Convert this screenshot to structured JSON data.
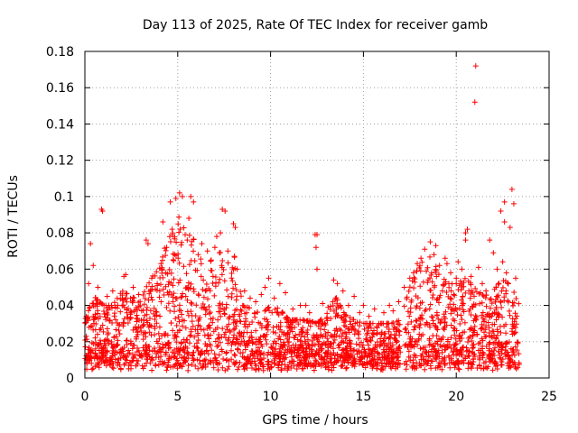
{
  "chart_data": {
    "type": "scatter",
    "title": "Day 113 of 2025, Rate Of TEC Index for receiver gamb",
    "xlabel": "GPS time / hours",
    "ylabel": "ROTI / TECUs",
    "xlim": [
      0,
      25
    ],
    "ylim": [
      0,
      0.18
    ],
    "x_ticks": [
      0,
      5,
      10,
      15,
      20,
      25
    ],
    "x_tick_labels": [
      "0",
      "5",
      "10",
      "15",
      "20",
      "25"
    ],
    "y_ticks": [
      0,
      0.02,
      0.04,
      0.06,
      0.08,
      0.1,
      0.12,
      0.14,
      0.16,
      0.18
    ],
    "y_tick_labels": [
      "0",
      "0.02",
      "0.04",
      "0.06",
      "0.08",
      "0.1",
      "0.12",
      "0.14",
      "0.16",
      "0.18"
    ],
    "grid": true,
    "marker": "+",
    "colors": {
      "series": "#ff0000",
      "grid": "#a0a0a0",
      "axis": "#000000"
    },
    "series": [
      {
        "name": "ROTI",
        "points": [
          [
            0.3,
            0.074
          ],
          [
            0.9,
            0.093
          ],
          [
            0.95,
            0.092
          ],
          [
            4.2,
            0.086
          ],
          [
            4.6,
            0.097
          ],
          [
            4.9,
            0.099
          ],
          [
            5.1,
            0.102
          ],
          [
            5.25,
            0.1
          ],
          [
            5.7,
            0.1
          ],
          [
            5.85,
            0.097
          ],
          [
            7.4,
            0.093
          ],
          [
            7.55,
            0.092
          ],
          [
            8.0,
            0.085
          ],
          [
            8.1,
            0.083
          ],
          [
            3.3,
            0.076
          ],
          [
            3.4,
            0.074
          ],
          [
            2.1,
            0.056
          ],
          [
            2.2,
            0.057
          ],
          [
            6.6,
            0.07
          ],
          [
            7.1,
            0.078
          ],
          [
            12.4,
            0.079
          ],
          [
            12.5,
            0.079
          ],
          [
            12.45,
            0.072
          ],
          [
            12.5,
            0.06
          ],
          [
            10.5,
            0.052
          ],
          [
            10.8,
            0.047
          ],
          [
            13.4,
            0.054
          ],
          [
            13.6,
            0.052
          ],
          [
            9.9,
            0.055
          ],
          [
            9.7,
            0.05
          ],
          [
            11.9,
            0.04
          ],
          [
            14.5,
            0.045
          ],
          [
            15.0,
            0.04
          ],
          [
            16.4,
            0.04
          ],
          [
            16.9,
            0.042
          ],
          [
            17.9,
            0.063
          ],
          [
            18.3,
            0.071
          ],
          [
            18.6,
            0.075
          ],
          [
            18.9,
            0.073
          ],
          [
            19.4,
            0.066
          ],
          [
            19.5,
            0.063
          ],
          [
            20.1,
            0.064
          ],
          [
            20.5,
            0.08
          ],
          [
            20.6,
            0.082
          ],
          [
            20.5,
            0.076
          ],
          [
            21.0,
            0.152
          ],
          [
            21.05,
            0.172
          ],
          [
            21.2,
            0.061
          ],
          [
            21.8,
            0.076
          ],
          [
            22.0,
            0.069
          ],
          [
            22.4,
            0.092
          ],
          [
            22.6,
            0.097
          ],
          [
            22.6,
            0.086
          ],
          [
            22.9,
            0.083
          ],
          [
            23.0,
            0.104
          ],
          [
            23.1,
            0.096
          ],
          [
            22.5,
            0.064
          ],
          [
            22.7,
            0.058
          ],
          [
            0.2,
            0.052
          ],
          [
            0.45,
            0.062
          ],
          [
            0.7,
            0.05
          ],
          [
            1.2,
            0.045
          ],
          [
            1.5,
            0.048
          ],
          [
            2.6,
            0.05
          ],
          [
            2.9,
            0.046
          ],
          [
            3.6,
            0.055
          ],
          [
            3.9,
            0.051
          ],
          [
            4.1,
            0.063
          ],
          [
            4.4,
            0.072
          ],
          [
            4.7,
            0.082
          ],
          [
            5.4,
            0.079
          ],
          [
            5.6,
            0.088
          ],
          [
            6.1,
            0.068
          ],
          [
            6.3,
            0.074
          ],
          [
            6.8,
            0.065
          ],
          [
            7.0,
            0.072
          ],
          [
            7.3,
            0.08
          ],
          [
            7.7,
            0.07
          ],
          [
            8.2,
            0.06
          ],
          [
            8.6,
            0.048
          ],
          [
            8.9,
            0.044
          ],
          [
            9.2,
            0.042
          ],
          [
            9.5,
            0.046
          ],
          [
            10.2,
            0.044
          ],
          [
            11.2,
            0.038
          ],
          [
            11.6,
            0.04
          ],
          [
            12.1,
            0.036
          ],
          [
            12.8,
            0.041
          ],
          [
            13.1,
            0.039
          ],
          [
            13.9,
            0.048
          ],
          [
            14.2,
            0.04
          ],
          [
            14.8,
            0.036
          ],
          [
            15.3,
            0.034
          ],
          [
            15.6,
            0.038
          ],
          [
            16.1,
            0.036
          ],
          [
            16.6,
            0.037
          ],
          [
            17.2,
            0.05
          ],
          [
            17.5,
            0.055
          ],
          [
            17.7,
            0.058
          ],
          [
            18.1,
            0.066
          ],
          [
            18.8,
            0.068
          ],
          [
            19.1,
            0.062
          ],
          [
            19.7,
            0.058
          ],
          [
            20.0,
            0.055
          ],
          [
            20.3,
            0.06
          ],
          [
            20.8,
            0.056
          ],
          [
            21.4,
            0.052
          ],
          [
            21.6,
            0.048
          ],
          [
            22.2,
            0.06
          ],
          [
            23.2,
            0.055
          ]
        ]
      }
    ],
    "dense_band": {
      "description": "continuous cloud of samples between the envelope values",
      "x_start": 0,
      "x_end": 23.4,
      "gap": [
        17.0,
        17.2
      ],
      "baseline_min": 0.004,
      "envelope": [
        [
          0,
          0.032
        ],
        [
          0.5,
          0.045
        ],
        [
          1,
          0.04
        ],
        [
          1.5,
          0.04
        ],
        [
          2,
          0.048
        ],
        [
          2.5,
          0.045
        ],
        [
          3,
          0.042
        ],
        [
          3.5,
          0.055
        ],
        [
          4,
          0.06
        ],
        [
          4.5,
          0.08
        ],
        [
          5,
          0.09
        ],
        [
          5.5,
          0.08
        ],
        [
          6,
          0.075
        ],
        [
          6.5,
          0.06
        ],
        [
          7,
          0.068
        ],
        [
          7.5,
          0.07
        ],
        [
          8,
          0.07
        ],
        [
          8.5,
          0.04
        ],
        [
          9,
          0.038
        ],
        [
          9.5,
          0.035
        ],
        [
          10,
          0.04
        ],
        [
          10.5,
          0.038
        ],
        [
          11,
          0.032
        ],
        [
          11.5,
          0.032
        ],
        [
          12,
          0.032
        ],
        [
          12.5,
          0.03
        ],
        [
          13,
          0.035
        ],
        [
          13.5,
          0.045
        ],
        [
          14,
          0.035
        ],
        [
          14.5,
          0.032
        ],
        [
          15,
          0.03
        ],
        [
          15.5,
          0.03
        ],
        [
          16,
          0.03
        ],
        [
          16.5,
          0.03
        ],
        [
          17,
          0.032
        ],
        [
          17.5,
          0.05
        ],
        [
          18,
          0.062
        ],
        [
          18.5,
          0.068
        ],
        [
          19,
          0.06
        ],
        [
          19.5,
          0.052
        ],
        [
          20,
          0.052
        ],
        [
          20.5,
          0.055
        ],
        [
          21,
          0.05
        ],
        [
          21.5,
          0.045
        ],
        [
          22,
          0.048
        ],
        [
          22.5,
          0.055
        ],
        [
          23,
          0.05
        ],
        [
          23.4,
          0.04
        ]
      ]
    }
  }
}
